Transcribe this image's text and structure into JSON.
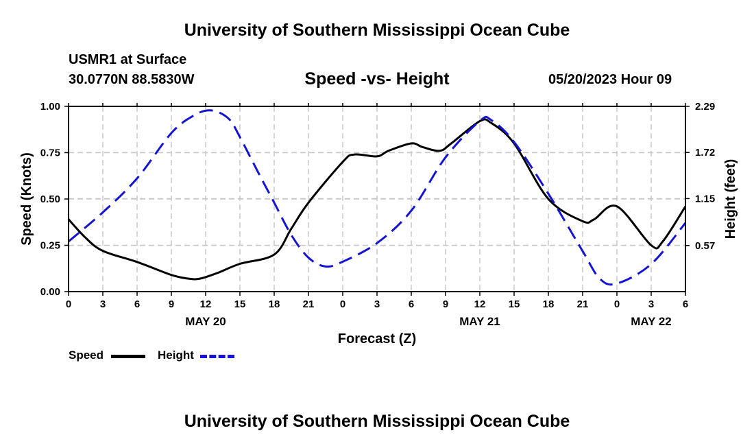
{
  "page": {
    "title_top": "University of Southern Mississippi Ocean Cube",
    "title_bottom": "University of Southern Mississippi Ocean Cube",
    "station": "USMR1 at Surface",
    "coords": "30.0770N  88.5830W",
    "chart_title": "Speed -vs- Height",
    "datetime": "05/20/2023 Hour 09"
  },
  "legend": {
    "speed_label": "Speed",
    "height_label": "Height"
  },
  "colors": {
    "speed": "#000000",
    "height": "#1414d2",
    "grid": "#c8c8c8"
  },
  "chart_data": {
    "type": "line",
    "title": "Speed -vs- Height",
    "xlabel": "Forecast (Z)",
    "ylabel": "Speed (Knots)",
    "y2label": "Height (feet)",
    "x_range": [
      0,
      54
    ],
    "x_ticks": [
      0,
      3,
      6,
      9,
      12,
      15,
      18,
      21,
      24,
      27,
      30,
      33,
      36,
      39,
      42,
      45,
      48,
      51,
      54
    ],
    "x_tick_labels": [
      "0",
      "3",
      "6",
      "9",
      "12",
      "15",
      "18",
      "21",
      "0",
      "3",
      "6",
      "9",
      "12",
      "15",
      "18",
      "21",
      "0",
      "3",
      "6"
    ],
    "date_labels": [
      {
        "x": 12,
        "label": "MAY 20"
      },
      {
        "x": 36,
        "label": "MAY 21"
      },
      {
        "x": 51,
        "label": "MAY 22"
      }
    ],
    "ylim": [
      0,
      1.0
    ],
    "y_ticks": [
      0,
      0.25,
      0.5,
      0.75,
      1.0
    ],
    "y_tick_labels": [
      "0.00",
      "0.25",
      "0.50",
      "0.75",
      "1.00"
    ],
    "y2lim": [
      0,
      2.29
    ],
    "y2_ticks": [
      0.57,
      1.15,
      1.72,
      2.29
    ],
    "y2_tick_labels": [
      "0.57",
      "1.15",
      "1.72",
      "2.29"
    ],
    "grid": true,
    "series": [
      {
        "name": "Speed",
        "axis": "left",
        "style": "solid",
        "x": [
          0,
          1.5,
          3,
          6,
          9,
          10.5,
          11.5,
          13,
          15,
          18,
          19.5,
          21,
          24,
          25,
          27,
          28,
          30,
          31,
          32.5,
          33.5,
          36,
          37,
          39,
          42,
          45,
          46,
          48,
          51,
          52,
          54
        ],
        "values": [
          0.39,
          0.29,
          0.22,
          0.16,
          0.09,
          0.07,
          0.07,
          0.1,
          0.15,
          0.2,
          0.34,
          0.48,
          0.7,
          0.74,
          0.73,
          0.76,
          0.8,
          0.78,
          0.76,
          0.8,
          0.92,
          0.91,
          0.8,
          0.5,
          0.38,
          0.39,
          0.46,
          0.25,
          0.27,
          0.46
        ]
      },
      {
        "name": "Height",
        "axis": "right",
        "style": "dashed",
        "x": [
          0,
          3,
          6,
          9,
          11,
          12.5,
          14,
          15,
          16.5,
          18,
          19.5,
          21,
          22.5,
          24,
          27,
          30,
          33,
          36,
          37,
          39,
          42,
          45,
          46.5,
          48,
          51,
          54
        ],
        "values": [
          0.62,
          0.98,
          1.4,
          1.96,
          2.18,
          2.24,
          2.14,
          1.91,
          1.5,
          1.1,
          0.7,
          0.42,
          0.31,
          0.37,
          0.6,
          1.0,
          1.66,
          2.11,
          2.12,
          1.85,
          1.21,
          0.5,
          0.16,
          0.1,
          0.34,
          0.85
        ]
      }
    ]
  }
}
